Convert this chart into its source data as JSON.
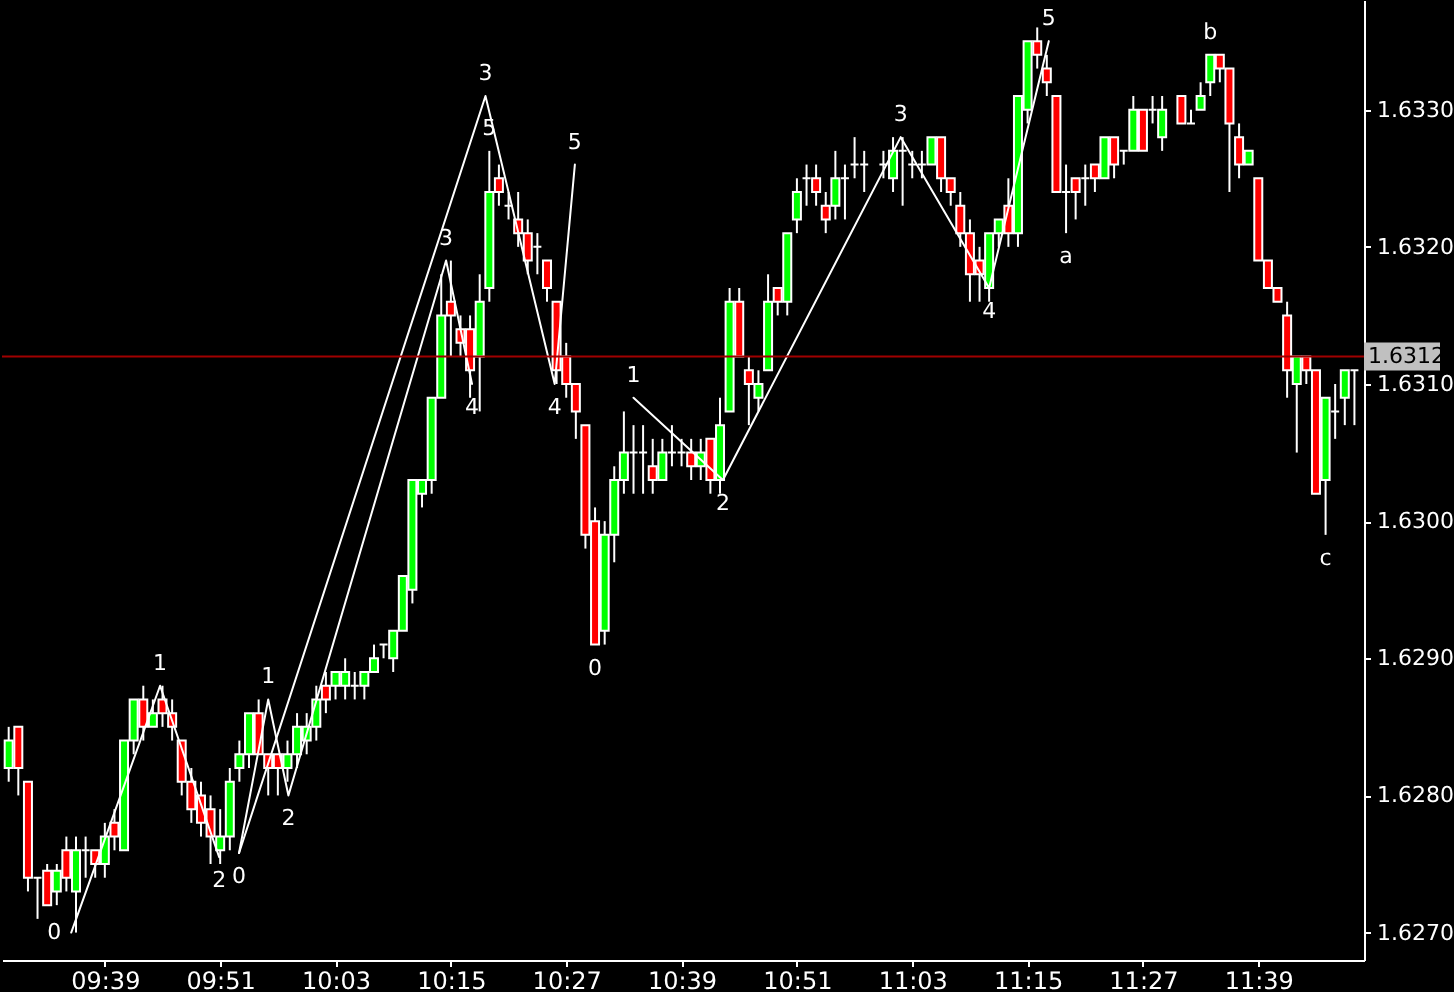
{
  "chart_data": {
    "type": "candlestick",
    "x": [
      9.4833,
      9.5,
      9.5167,
      9.5333,
      9.55,
      9.5667,
      9.5833,
      9.6,
      9.6167,
      9.6333,
      9.65,
      9.6667,
      9.6833,
      9.7,
      9.7167,
      9.7333,
      9.75,
      9.7667,
      9.7833,
      9.8,
      9.8167,
      9.8333,
      9.85,
      9.8667,
      9.8833,
      9.9,
      9.9167,
      9.9333,
      9.95,
      9.9667,
      9.9833,
      10,
      10.0167,
      10.0333,
      10.05,
      10.0667,
      10.0833,
      10.1,
      10.1167,
      10.1333,
      10.15,
      10.1667,
      10.1833,
      10.2,
      10.2167,
      10.2333,
      10.25,
      10.2667,
      10.2833,
      10.3,
      10.3167,
      10.3333,
      10.35,
      10.3667,
      10.3833,
      10.4,
      10.4167,
      10.4333,
      10.45,
      10.4667,
      10.4833,
      10.5,
      10.5167,
      10.5333,
      10.55,
      10.5667,
      10.5833,
      10.6,
      10.6167,
      10.6333,
      10.65,
      10.6667,
      10.6833,
      10.7,
      10.7167,
      10.7333,
      10.75,
      10.7667,
      10.7833,
      10.8,
      10.8167,
      10.8333,
      10.85,
      10.8667,
      10.8833,
      10.9,
      10.9167,
      10.9333,
      10.95,
      10.9667,
      11,
      11.0167,
      11.0333,
      11.05,
      11.0667,
      11.0833,
      11.1,
      11.1167,
      11.1333,
      11.15,
      11.1667,
      11.1833,
      11.2,
      11.2167,
      11.2333,
      11.25,
      11.2667,
      11.2833,
      11.3,
      11.3167,
      11.3333,
      11.35,
      11.3667,
      11.3833,
      11.4,
      11.4167,
      11.4333,
      11.45,
      11.4667,
      11.4833,
      11.5167,
      11.5333,
      11.55,
      11.5667,
      11.5833,
      11.6,
      11.6167,
      11.6333,
      11.65,
      11.6667,
      11.6833,
      11.7,
      11.7167,
      11.7333,
      11.75,
      11.7667,
      11.7833,
      11.8,
      11.8167
    ],
    "ohlc": [
      [
        1.6282,
        1.6285,
        1.6281,
        1.6284
      ],
      [
        1.6285,
        1.6285,
        1.628,
        1.6282
      ],
      [
        1.6281,
        1.6281,
        1.6273,
        1.6274
      ],
      [
        1.6274,
        1.6274,
        1.6271,
        1.6274
      ],
      [
        1.62745,
        1.6275,
        1.6272,
        1.6272
      ],
      [
        1.6273,
        1.6275,
        1.6272,
        1.62745
      ],
      [
        1.6276,
        1.6277,
        1.6273,
        1.6274
      ],
      [
        1.6273,
        1.6277,
        1.627,
        1.6276
      ],
      [
        1.6276,
        1.6277,
        1.6274,
        1.6276
      ],
      [
        1.6276,
        1.6276,
        1.6274,
        1.6275
      ],
      [
        1.6275,
        1.6278,
        1.6274,
        1.6277
      ],
      [
        1.6278,
        1.6279,
        1.6276,
        1.6277
      ],
      [
        1.6276,
        1.6284,
        1.6276,
        1.6284
      ],
      [
        1.6284,
        1.6287,
        1.6283,
        1.6287
      ],
      [
        1.6287,
        1.6288,
        1.6284,
        1.6285
      ],
      [
        1.6285,
        1.6287,
        1.6285,
        1.6286
      ],
      [
        1.6287,
        1.6288,
        1.6285,
        1.6286
      ],
      [
        1.6286,
        1.6287,
        1.6284,
        1.6285
      ],
      [
        1.6284,
        1.6284,
        1.628,
        1.6281
      ],
      [
        1.6281,
        1.6282,
        1.6278,
        1.6279
      ],
      [
        1.628,
        1.6281,
        1.6277,
        1.6278
      ],
      [
        1.6279,
        1.628,
        1.6275,
        1.6277
      ],
      [
        1.6276,
        1.6279,
        1.6275,
        1.6277
      ],
      [
        1.6277,
        1.6282,
        1.6276,
        1.6281
      ],
      [
        1.6282,
        1.6284,
        1.6281,
        1.6283
      ],
      [
        1.6283,
        1.6286,
        1.6282,
        1.6286
      ],
      [
        1.6286,
        1.6287,
        1.6283,
        1.6283
      ],
      [
        1.6283,
        1.6283,
        1.628,
        1.6282
      ],
      [
        1.6283,
        1.6283,
        1.628,
        1.6282
      ],
      [
        1.6282,
        1.6284,
        1.6281,
        1.6283
      ],
      [
        1.6283,
        1.6286,
        1.6282,
        1.6285
      ],
      [
        1.6284,
        1.6286,
        1.6283,
        1.6285
      ],
      [
        1.6285,
        1.6288,
        1.6284,
        1.6287
      ],
      [
        1.6288,
        1.6289,
        1.6286,
        1.6287
      ],
      [
        1.6288,
        1.6289,
        1.6287,
        1.6289
      ],
      [
        1.6288,
        1.629,
        1.6287,
        1.6289
      ],
      [
        1.6288,
        1.6289,
        1.6287,
        1.6288
      ],
      [
        1.6288,
        1.6289,
        1.6287,
        1.6289
      ],
      [
        1.6289,
        1.6291,
        1.6289,
        1.629
      ],
      [
        1.6291,
        1.6291,
        1.629,
        1.6291
      ],
      [
        1.629,
        1.6292,
        1.6289,
        1.6292
      ],
      [
        1.6292,
        1.6296,
        1.6292,
        1.6296
      ],
      [
        1.6295,
        1.6303,
        1.6294,
        1.6303
      ],
      [
        1.6302,
        1.6303,
        1.6301,
        1.6303
      ],
      [
        1.6303,
        1.6309,
        1.6302,
        1.6309
      ],
      [
        1.6309,
        1.6318,
        1.6309,
        1.6315
      ],
      [
        1.6316,
        1.6319,
        1.6312,
        1.6315
      ],
      [
        1.6314,
        1.6315,
        1.6312,
        1.6313
      ],
      [
        1.6314,
        1.6315,
        1.6309,
        1.6311
      ],
      [
        1.6312,
        1.6318,
        1.6308,
        1.6316
      ],
      [
        1.6317,
        1.6327,
        1.6316,
        1.6324
      ],
      [
        1.6325,
        1.6326,
        1.6323,
        1.6324
      ],
      [
        1.6323,
        1.6324,
        1.6322,
        1.6323
      ],
      [
        1.6322,
        1.6324,
        1.632,
        1.6321
      ],
      [
        1.6321,
        1.6322,
        1.6318,
        1.6319
      ],
      [
        1.632,
        1.6321,
        1.6318,
        1.632
      ],
      [
        1.6319,
        1.6319,
        1.6316,
        1.6317
      ],
      [
        1.6316,
        1.6316,
        1.631,
        1.6311
      ],
      [
        1.6312,
        1.6313,
        1.6309,
        1.631
      ],
      [
        1.631,
        1.631,
        1.6306,
        1.6308
      ],
      [
        1.6307,
        1.6307,
        1.6298,
        1.6299
      ],
      [
        1.63,
        1.6301,
        1.6291,
        1.6291
      ],
      [
        1.6292,
        1.63,
        1.6291,
        1.6299
      ],
      [
        1.6299,
        1.6304,
        1.6297,
        1.6303
      ],
      [
        1.6303,
        1.6308,
        1.6302,
        1.6305
      ],
      [
        1.6305,
        1.6307,
        1.6302,
        1.6305
      ],
      [
        1.6305,
        1.6307,
        1.6302,
        1.6305
      ],
      [
        1.6304,
        1.6306,
        1.6302,
        1.6303
      ],
      [
        1.6303,
        1.6306,
        1.6303,
        1.6305
      ],
      [
        1.6305,
        1.6307,
        1.6304,
        1.6305
      ],
      [
        1.6305,
        1.6306,
        1.6304,
        1.6305
      ],
      [
        1.6305,
        1.6306,
        1.6303,
        1.6304
      ],
      [
        1.6304,
        1.6306,
        1.6303,
        1.6305
      ],
      [
        1.6306,
        1.6306,
        1.6302,
        1.6303
      ],
      [
        1.6303,
        1.6309,
        1.6302,
        1.6307
      ],
      [
        1.6308,
        1.6317,
        1.6308,
        1.6316
      ],
      [
        1.6316,
        1.6317,
        1.6312,
        1.6312
      ],
      [
        1.6311,
        1.6312,
        1.6307,
        1.631
      ],
      [
        1.6309,
        1.6311,
        1.6308,
        1.631
      ],
      [
        1.6311,
        1.6318,
        1.6311,
        1.6316
      ],
      [
        1.6317,
        1.6317,
        1.6315,
        1.6316
      ],
      [
        1.6316,
        1.6321,
        1.6315,
        1.6321
      ],
      [
        1.6322,
        1.6325,
        1.6321,
        1.6324
      ],
      [
        1.6325,
        1.6326,
        1.6323,
        1.6325
      ],
      [
        1.6325,
        1.6326,
        1.6323,
        1.6324
      ],
      [
        1.6323,
        1.6324,
        1.6321,
        1.6322
      ],
      [
        1.6323,
        1.6327,
        1.6322,
        1.6325
      ],
      [
        1.6325,
        1.6326,
        1.6322,
        1.6325
      ],
      [
        1.6326,
        1.6328,
        1.6325,
        1.6326
      ],
      [
        1.6326,
        1.6327,
        1.6324,
        1.6326
      ],
      [
        1.6326,
        1.6327,
        1.6325,
        1.6326
      ],
      [
        1.6325,
        1.6328,
        1.6324,
        1.6327
      ],
      [
        1.6327,
        1.6328,
        1.6323,
        1.6327
      ],
      [
        1.6326,
        1.6327,
        1.6325,
        1.6326
      ],
      [
        1.6326,
        1.6327,
        1.6325,
        1.6326
      ],
      [
        1.6326,
        1.6328,
        1.6326,
        1.6328
      ],
      [
        1.6328,
        1.6328,
        1.6324,
        1.6325
      ],
      [
        1.6325,
        1.6325,
        1.6323,
        1.6324
      ],
      [
        1.6323,
        1.6324,
        1.632,
        1.6321
      ],
      [
        1.6321,
        1.6322,
        1.6316,
        1.6318
      ],
      [
        1.6319,
        1.632,
        1.6316,
        1.6318
      ],
      [
        1.6317,
        1.6321,
        1.6316,
        1.6321
      ],
      [
        1.6321,
        1.6322,
        1.632,
        1.6322
      ],
      [
        1.6323,
        1.6325,
        1.632,
        1.6321
      ],
      [
        1.6321,
        1.6331,
        1.632,
        1.6331
      ],
      [
        1.633,
        1.6335,
        1.6329,
        1.6335
      ],
      [
        1.6335,
        1.6336,
        1.6333,
        1.6334
      ],
      [
        1.6333,
        1.6334,
        1.6331,
        1.6332
      ],
      [
        1.6331,
        1.6331,
        1.6324,
        1.6324
      ],
      [
        1.6324,
        1.6326,
        1.6321,
        1.6324
      ],
      [
        1.6325,
        1.6325,
        1.6322,
        1.6324
      ],
      [
        1.6325,
        1.6326,
        1.6323,
        1.6325
      ],
      [
        1.6326,
        1.6326,
        1.6324,
        1.6325
      ],
      [
        1.6325,
        1.6328,
        1.6325,
        1.6328
      ],
      [
        1.6328,
        1.6328,
        1.6325,
        1.6326
      ],
      [
        1.6327,
        1.6327,
        1.6326,
        1.6327
      ],
      [
        1.6327,
        1.6331,
        1.6327,
        1.633
      ],
      [
        1.633,
        1.633,
        1.6327,
        1.6327
      ],
      [
        1.633,
        1.6331,
        1.6329,
        1.633
      ],
      [
        1.6328,
        1.6331,
        1.6327,
        1.633
      ],
      [
        1.6331,
        1.6331,
        1.6329,
        1.6329
      ],
      [
        1.6329,
        1.633,
        1.6329,
        1.6329
      ],
      [
        1.633,
        1.6332,
        1.633,
        1.6331
      ],
      [
        1.6332,
        1.6334,
        1.6331,
        1.6334
      ],
      [
        1.6334,
        1.6334,
        1.6332,
        1.6333
      ],
      [
        1.6333,
        1.6333,
        1.6324,
        1.6329
      ],
      [
        1.6328,
        1.6329,
        1.6325,
        1.6326
      ],
      [
        1.6326,
        1.6327,
        1.6326,
        1.6327
      ],
      [
        1.6325,
        1.6325,
        1.6319,
        1.6319
      ],
      [
        1.6319,
        1.6319,
        1.6317,
        1.6317
      ],
      [
        1.6317,
        1.6317,
        1.6316,
        1.6316
      ],
      [
        1.6315,
        1.6316,
        1.6309,
        1.6311
      ],
      [
        1.631,
        1.6312,
        1.6305,
        1.6312
      ],
      [
        1.6312,
        1.6312,
        1.631,
        1.6311
      ],
      [
        1.6311,
        1.6311,
        1.6302,
        1.6302
      ],
      [
        1.6303,
        1.6309,
        1.6299,
        1.6309
      ],
      [
        1.6308,
        1.631,
        1.6306,
        1.6308
      ],
      [
        1.6309,
        1.6311,
        1.6307,
        1.6311
      ],
      [
        1.6311,
        1.6311,
        1.6307,
        1.6311
      ]
    ],
    "series": [
      {
        "type": "line",
        "color": "#ffffff",
        "x": [
          9.5917,
          9.7458,
          9.8483
        ],
        "values": [
          1.627,
          1.6288,
          1.62755
        ]
      },
      {
        "type": "line",
        "color": "#ffffff",
        "x": [
          9.8827,
          10.31,
          10.43,
          10.465
        ],
        "values": [
          1.62758,
          1.6331,
          1.631,
          1.6326
        ]
      },
      {
        "type": "line",
        "color": "#ffffff",
        "x": [
          9.8827,
          9.9333,
          9.9683,
          10.2417,
          10.2867
        ],
        "values": [
          1.62758,
          1.6287,
          1.628,
          1.6319,
          1.631
        ]
      },
      {
        "type": "line",
        "color": "#ffffff",
        "x": [
          10.5667,
          10.7217,
          11.03,
          11.1833,
          11.2867
        ],
        "values": [
          1.6309,
          1.6303,
          1.6328,
          1.6317,
          1.6335
        ]
      }
    ],
    "annotations": [
      {
        "text": "0",
        "x": 9.5917,
        "y": 1.627
      },
      {
        "text": "1",
        "x": 9.7458,
        "y": 1.6288
      },
      {
        "text": "2",
        "x": 9.8483,
        "y": 1.62755
      },
      {
        "text": "0",
        "x": 9.8827,
        "y": 1.62758
      },
      {
        "text": "1",
        "x": 9.9333,
        "y": 1.6287
      },
      {
        "text": "2",
        "x": 9.9683,
        "y": 1.628
      },
      {
        "text": "3",
        "x": 10.2417,
        "y": 1.6319
      },
      {
        "text": "4",
        "x": 10.2867,
        "y": 1.631
      },
      {
        "text": "5",
        "x": 10.3167,
        "y": 1.6327
      },
      {
        "text": "3",
        "x": 10.31,
        "y": 1.6331
      },
      {
        "text": "4",
        "x": 10.43,
        "y": 1.631
      },
      {
        "text": "5",
        "x": 10.465,
        "y": 1.6326
      },
      {
        "text": "0",
        "x": 10.5,
        "y": 1.6291
      },
      {
        "text": "1",
        "x": 10.5667,
        "y": 1.6309
      },
      {
        "text": "2",
        "x": 10.7217,
        "y": 1.6303
      },
      {
        "text": "3",
        "x": 11.03,
        "y": 1.6328
      },
      {
        "text": "4",
        "x": 11.1833,
        "y": 1.6317
      },
      {
        "text": "5",
        "x": 11.2867,
        "y": 1.6335
      },
      {
        "text": "a",
        "x": 11.3167,
        "y": 1.6321
      },
      {
        "text": "b",
        "x": 11.5667,
        "y": 1.6334
      },
      {
        "text": "c",
        "x": 11.7667,
        "y": 1.6299
      }
    ],
    "ref_lines": [
      {
        "axis": "y",
        "value": 1.6312,
        "label": "1.6312",
        "color": "#a00000"
      }
    ],
    "xlim": [
      9.4717,
      11.8333
    ],
    "ylim": [
      1.6268,
      1.6338
    ],
    "xticks": [
      {
        "value": 9.65,
        "label": "09:39"
      },
      {
        "value": 9.85,
        "label": "09:51"
      },
      {
        "value": 10.05,
        "label": "10:03"
      },
      {
        "value": 10.25,
        "label": "10:15"
      },
      {
        "value": 10.45,
        "label": "10:27"
      },
      {
        "value": 10.65,
        "label": "10:39"
      },
      {
        "value": 10.85,
        "label": "10:51"
      },
      {
        "value": 11.05,
        "label": "11:03"
      },
      {
        "value": 11.25,
        "label": "11:15"
      },
      {
        "value": 11.45,
        "label": "11:27"
      },
      {
        "value": 11.65,
        "label": "11:39"
      }
    ],
    "yticks": [
      {
        "value": 1.627,
        "label": "1.6270"
      },
      {
        "value": 1.628,
        "label": "1.6280"
      },
      {
        "value": 1.629,
        "label": "1.6290"
      },
      {
        "value": 1.63,
        "label": "1.6300"
      },
      {
        "value": 1.631,
        "label": "1.6310"
      },
      {
        "value": 1.632,
        "label": "1.6320"
      },
      {
        "value": 1.633,
        "label": "1.6330"
      }
    ],
    "grid": false
  }
}
